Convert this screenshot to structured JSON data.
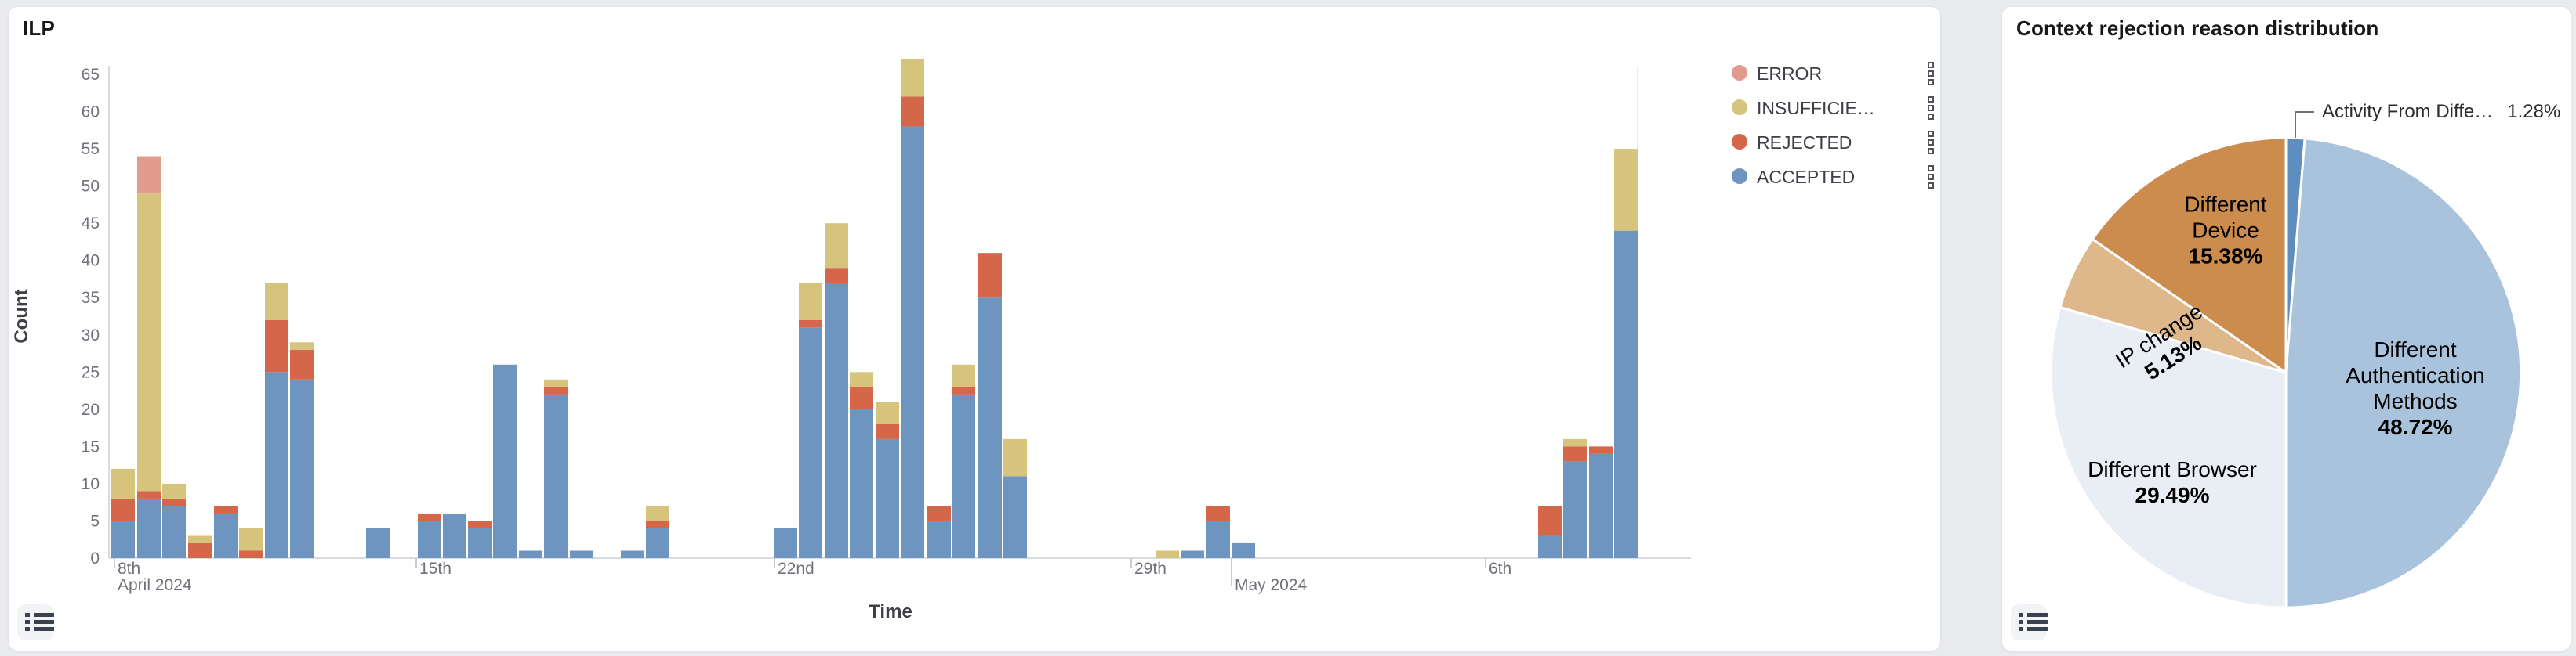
{
  "left_panel": {
    "title": "ILP",
    "y_axis_label": "Count",
    "x_axis_label": "Time",
    "legend": [
      {
        "label": "ERROR",
        "color": "#e29a8d"
      },
      {
        "label": "INSUFFICIE…",
        "color": "#d6c47c"
      },
      {
        "label": "REJECTED",
        "color": "#d4674a"
      },
      {
        "label": "ACCEPTED",
        "color": "#6e95c0"
      }
    ],
    "icons": {
      "legend_handle": "drag-handle-squares",
      "bottom_left": "list-icon"
    }
  },
  "right_panel": {
    "title": "Context rejection reason distribution",
    "labels": {
      "device_line1": "Different",
      "device_line2": "Device",
      "device_pct": "15.38%",
      "ip_line": "IP change",
      "ip_pct": "5.13%",
      "browser_line": "Different Browser",
      "browser_pct": "29.49%",
      "auth_line1": "Different",
      "auth_line2": "Authentication",
      "auth_line3": "Methods ",
      "auth_pct": "48.72%",
      "callout_label": "Activity From Diffe…",
      "callout_pct": "1.28%"
    },
    "icons": {
      "bottom_left": "list-icon"
    }
  },
  "chart_data": [
    {
      "type": "bar",
      "stacked": true,
      "title": "ILP",
      "xlabel": "Time",
      "ylabel": "Count",
      "ylim": [
        0,
        65
      ],
      "grid": false,
      "legend_position": "right",
      "y_ticks": [
        0,
        5,
        10,
        15,
        20,
        25,
        30,
        35,
        40,
        45,
        50,
        55,
        60,
        65
      ],
      "x_ticks": [
        {
          "label": "8th",
          "sublabel": "April 2024",
          "px": 135
        },
        {
          "label": "15th",
          "px": 520
        },
        {
          "label": "22nd",
          "px": 977
        },
        {
          "label": "29th",
          "px": 1432
        },
        {
          "label": "May 2024",
          "px": 1560,
          "month": true
        },
        {
          "label": "6th",
          "px": 1884
        }
      ],
      "series": [
        {
          "key": "a",
          "name": "ACCEPTED",
          "color": "#6e95c0"
        },
        {
          "key": "r",
          "name": "REJECTED",
          "color": "#d4674a"
        },
        {
          "key": "i",
          "name": "INSUFFICIE…",
          "color": "#d6c47c"
        },
        {
          "key": "e",
          "name": "ERROR",
          "color": "#e29a8d"
        }
      ],
      "x_unit": "12-hour buckets, day offset from first tick (8th April 2024)",
      "bars": [
        {
          "t": 0.0,
          "px": 131,
          "a": 5,
          "r": 3,
          "i": 4,
          "e": 0
        },
        {
          "t": 0.5,
          "px": 164,
          "a": 8,
          "r": 1,
          "i": 40,
          "e": 5
        },
        {
          "t": 1.0,
          "px": 196,
          "a": 7,
          "r": 1,
          "i": 2,
          "e": 0
        },
        {
          "t": 1.5,
          "px": 229,
          "a": 0,
          "r": 2,
          "i": 1,
          "e": 0
        },
        {
          "t": 2.0,
          "px": 262,
          "a": 6,
          "r": 1,
          "i": 0,
          "e": 0
        },
        {
          "t": 2.5,
          "px": 294,
          "a": 0,
          "r": 1,
          "i": 3,
          "e": 0
        },
        {
          "t": 3.0,
          "px": 327,
          "a": 25,
          "r": 7,
          "i": 5,
          "e": 0
        },
        {
          "t": 3.5,
          "px": 359,
          "a": 24,
          "r": 4,
          "i": 1,
          "e": 0
        },
        {
          "t": 5.0,
          "px": 456,
          "a": 4,
          "r": 0,
          "i": 0,
          "e": 0
        },
        {
          "t": 6.0,
          "px": 522,
          "a": 5,
          "r": 1,
          "i": 0,
          "e": 0
        },
        {
          "t": 6.5,
          "px": 554,
          "a": 6,
          "r": 0,
          "i": 0,
          "e": 0
        },
        {
          "t": 7.0,
          "px": 586,
          "a": 4,
          "r": 1,
          "i": 0,
          "e": 0
        },
        {
          "t": 7.5,
          "px": 618,
          "a": 26,
          "r": 0,
          "i": 0,
          "e": 0
        },
        {
          "t": 8.0,
          "px": 651,
          "a": 1,
          "r": 0,
          "i": 0,
          "e": 0
        },
        {
          "t": 8.5,
          "px": 683,
          "a": 22,
          "r": 1,
          "i": 1,
          "e": 0
        },
        {
          "t": 9.0,
          "px": 716,
          "a": 1,
          "r": 0,
          "i": 0,
          "e": 0
        },
        {
          "t": 10.0,
          "px": 781,
          "a": 1,
          "r": 0,
          "i": 0,
          "e": 0
        },
        {
          "t": 10.5,
          "px": 813,
          "a": 4,
          "r": 1,
          "i": 2,
          "e": 0
        },
        {
          "t": 13.0,
          "px": 976,
          "a": 4,
          "r": 0,
          "i": 0,
          "e": 0
        },
        {
          "t": 13.5,
          "px": 1008,
          "a": 31,
          "r": 1,
          "i": 5,
          "e": 0
        },
        {
          "t": 14.0,
          "px": 1041,
          "a": 37,
          "r": 2,
          "i": 6,
          "e": 0
        },
        {
          "t": 14.5,
          "px": 1073,
          "a": 20,
          "r": 3,
          "i": 2,
          "e": 0
        },
        {
          "t": 15.0,
          "px": 1106,
          "a": 16,
          "r": 2,
          "i": 3,
          "e": 0
        },
        {
          "t": 15.5,
          "px": 1138,
          "a": 58,
          "r": 4,
          "i": 5,
          "e": 0
        },
        {
          "t": 16.0,
          "px": 1172,
          "a": 5,
          "r": 2,
          "i": 0,
          "e": 0
        },
        {
          "t": 16.5,
          "px": 1203,
          "a": 22,
          "r": 1,
          "i": 3,
          "e": 0
        },
        {
          "t": 17.0,
          "px": 1237,
          "a": 35,
          "r": 6,
          "i": 0,
          "e": 0
        },
        {
          "t": 17.5,
          "px": 1269,
          "a": 11,
          "r": 0,
          "i": 5,
          "e": 0
        },
        {
          "t": 20.5,
          "px": 1463,
          "a": 0,
          "r": 0,
          "i": 1,
          "e": 0
        },
        {
          "t": 21.0,
          "px": 1495,
          "a": 1,
          "r": 0,
          "i": 0,
          "e": 0
        },
        {
          "t": 21.5,
          "px": 1528,
          "a": 5,
          "r": 2,
          "i": 0,
          "e": 0
        },
        {
          "t": 22.0,
          "px": 1560,
          "a": 2,
          "r": 0,
          "i": 0,
          "e": 0
        },
        {
          "t": 28.0,
          "px": 1951,
          "a": 3,
          "r": 4,
          "i": 0,
          "e": 0
        },
        {
          "t": 28.5,
          "px": 1983,
          "a": 13,
          "r": 2,
          "i": 1,
          "e": 0
        },
        {
          "t": 29.0,
          "px": 2016,
          "a": 14,
          "r": 1,
          "i": 0,
          "e": 0
        },
        {
          "t": 29.5,
          "px": 2048,
          "a": 44,
          "r": 0,
          "i": 11,
          "e": 0
        }
      ]
    },
    {
      "type": "pie",
      "title": "Context rejection reason distribution",
      "start_angle": "12 o'clock, clockwise",
      "slices": [
        {
          "label": "Activity From Diffe…",
          "value": 1.28,
          "color": "#5d8ebf",
          "callout": true
        },
        {
          "label": "Different Authentication Methods",
          "value": 48.72,
          "color": "#aac3dd"
        },
        {
          "label": "Different Browser",
          "value": 29.49,
          "color": "#e9edf4"
        },
        {
          "label": "IP change",
          "value": 5.13,
          "color": "#deb88b"
        },
        {
          "label": "Different Device",
          "value": 15.38,
          "color": "#cc8c4e"
        }
      ]
    }
  ]
}
